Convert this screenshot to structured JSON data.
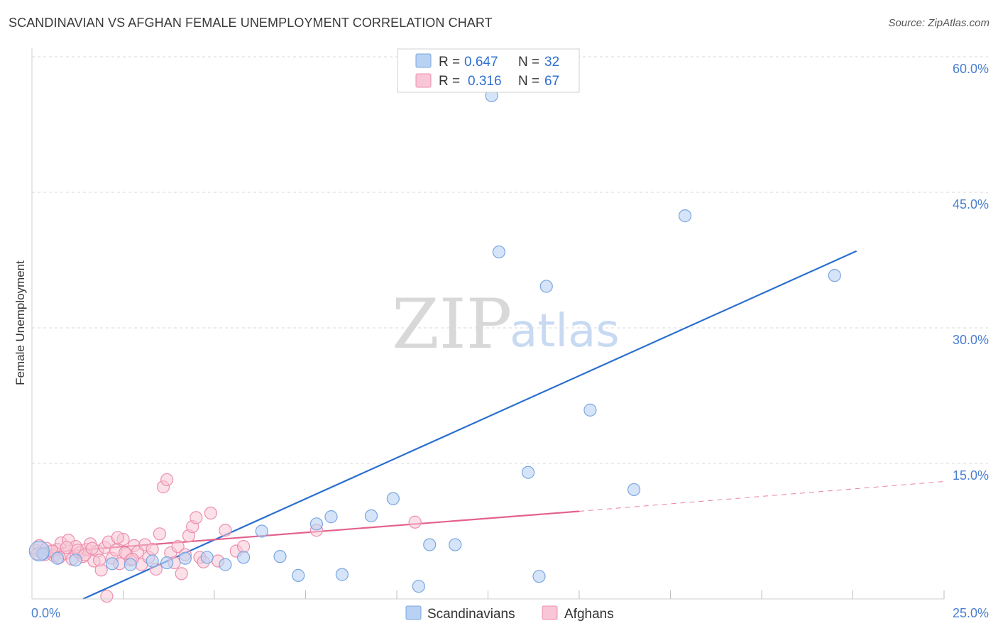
{
  "title": "SCANDINAVIAN VS AFGHAN FEMALE UNEMPLOYMENT CORRELATION CHART",
  "source": "Source: ZipAtlas.com",
  "watermark": {
    "zip": "ZIP",
    "atlas": "atlas"
  },
  "colors": {
    "blue_fill": "#b9d2f3",
    "blue_stroke": "#7aa6e0",
    "blue_line": "#2a6fcf",
    "pink_fill": "#f8c6d6",
    "pink_stroke": "#ec8fae",
    "pink_line": "#e3628c",
    "grid": "#d9d9d9",
    "tick_text": "#4a7fd0"
  },
  "legend": {
    "rows": [
      {
        "r_label": "R =",
        "r_value": "0.647",
        "n_label": "N =",
        "n_value": "32",
        "series": "blue"
      },
      {
        "r_label": "R =",
        "r_value": "0.316",
        "n_label": "N =",
        "n_value": "67",
        "series": "pink"
      }
    ]
  },
  "bottom_legend": [
    "Scandinavians",
    "Afghans"
  ],
  "chart_data": {
    "type": "scatter",
    "title": "SCANDINAVIAN VS AFGHAN FEMALE UNEMPLOYMENT CORRELATION CHART",
    "xlabel": "",
    "ylabel": "Female Unemployment",
    "xlim": [
      0,
      25
    ],
    "ylim": [
      0,
      60
    ],
    "x_tick_labels": [
      "0.0%",
      "25.0%"
    ],
    "y_ticks": [
      15,
      30,
      45,
      60
    ],
    "y_tick_labels": [
      "15.0%",
      "30.0%",
      "45.0%",
      "60.0%"
    ],
    "grid": true,
    "series": [
      {
        "name": "Scandinavians",
        "color": "blue",
        "R": 0.647,
        "N": 32,
        "points": [
          [
            0.3,
            5.0
          ],
          [
            0.7,
            4.5
          ],
          [
            1.2,
            4.3
          ],
          [
            2.2,
            3.9
          ],
          [
            2.7,
            3.8
          ],
          [
            3.3,
            4.2
          ],
          [
            3.7,
            4.0
          ],
          [
            4.2,
            4.5
          ],
          [
            4.8,
            4.6
          ],
          [
            5.3,
            3.8
          ],
          [
            5.8,
            4.6
          ],
          [
            6.3,
            7.5
          ],
          [
            6.8,
            4.7
          ],
          [
            7.3,
            2.6
          ],
          [
            7.8,
            8.3
          ],
          [
            8.2,
            9.1
          ],
          [
            8.5,
            2.7
          ],
          [
            9.3,
            9.2
          ],
          [
            9.9,
            11.1
          ],
          [
            10.6,
            1.4
          ],
          [
            10.9,
            6.0
          ],
          [
            11.6,
            6.0
          ],
          [
            12.6,
            55.7
          ],
          [
            12.8,
            38.4
          ],
          [
            13.6,
            14.0
          ],
          [
            13.9,
            2.5
          ],
          [
            14.1,
            34.6
          ],
          [
            15.3,
            20.9
          ],
          [
            16.5,
            12.1
          ],
          [
            17.9,
            42.4
          ],
          [
            22.0,
            35.8
          ],
          [
            0.2,
            5.3
          ]
        ],
        "trend": {
          "x0": 1.4,
          "y0": 0,
          "x1": 22.6,
          "y1": 38.5
        }
      },
      {
        "name": "Afghans",
        "color": "pink",
        "R": 0.316,
        "N": 67,
        "points": [
          [
            0.1,
            5.4
          ],
          [
            0.2,
            5.9
          ],
          [
            0.3,
            5.0
          ],
          [
            0.4,
            5.6
          ],
          [
            0.5,
            5.2
          ],
          [
            0.6,
            4.8
          ],
          [
            0.7,
            5.5
          ],
          [
            0.8,
            6.2
          ],
          [
            0.9,
            5.0
          ],
          [
            1.0,
            6.5
          ],
          [
            1.1,
            4.4
          ],
          [
            1.2,
            5.8
          ],
          [
            1.3,
            5.1
          ],
          [
            1.4,
            4.7
          ],
          [
            1.5,
            5.5
          ],
          [
            1.6,
            6.1
          ],
          [
            1.7,
            4.2
          ],
          [
            1.8,
            5.3
          ],
          [
            1.9,
            3.2
          ],
          [
            2.0,
            5.7
          ],
          [
            2.1,
            6.3
          ],
          [
            2.2,
            4.5
          ],
          [
            2.3,
            5.4
          ],
          [
            2.4,
            3.9
          ],
          [
            2.5,
            6.6
          ],
          [
            2.6,
            5.0
          ],
          [
            2.7,
            4.3
          ],
          [
            2.8,
            5.9
          ],
          [
            2.9,
            5.2
          ],
          [
            3.0,
            3.8
          ],
          [
            3.1,
            6.0
          ],
          [
            3.2,
            4.6
          ],
          [
            3.3,
            5.5
          ],
          [
            3.4,
            3.3
          ],
          [
            3.5,
            7.2
          ],
          [
            3.6,
            12.4
          ],
          [
            3.7,
            13.2
          ],
          [
            3.8,
            5.1
          ],
          [
            3.9,
            4.0
          ],
          [
            4.0,
            5.8
          ],
          [
            4.1,
            2.8
          ],
          [
            4.2,
            4.9
          ],
          [
            4.3,
            7.0
          ],
          [
            4.4,
            8.0
          ],
          [
            4.5,
            9.0
          ],
          [
            4.6,
            4.6
          ],
          [
            4.7,
            4.1
          ],
          [
            4.9,
            9.5
          ],
          [
            5.1,
            4.2
          ],
          [
            5.3,
            7.6
          ],
          [
            5.6,
            5.3
          ],
          [
            5.8,
            5.8
          ],
          [
            7.8,
            7.6
          ],
          [
            10.5,
            8.5
          ],
          [
            0.15,
            5.0
          ],
          [
            0.35,
            4.9
          ],
          [
            0.55,
            5.3
          ],
          [
            0.75,
            4.6
          ],
          [
            0.95,
            5.7
          ],
          [
            1.25,
            5.4
          ],
          [
            1.45,
            4.9
          ],
          [
            1.65,
            5.6
          ],
          [
            1.85,
            4.3
          ],
          [
            2.05,
            0.3
          ],
          [
            2.35,
            6.8
          ],
          [
            2.55,
            5.1
          ],
          [
            2.75,
            4.4
          ]
        ],
        "trend": {
          "x0": 0,
          "y0": 5.0,
          "x1": 15.0,
          "y1": 9.7
        },
        "trend_dashed": {
          "x0": 15.0,
          "y0": 9.7,
          "x1": 25.0,
          "y1": 13.0
        }
      }
    ]
  }
}
